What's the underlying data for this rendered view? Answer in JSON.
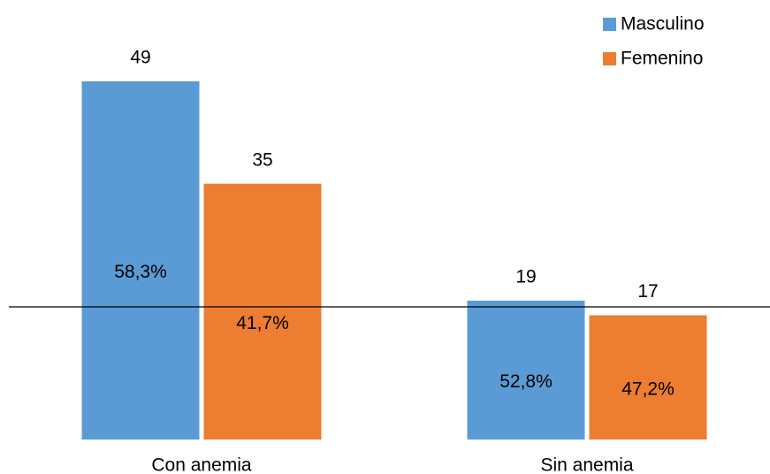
{
  "chart_data": {
    "type": "bar",
    "categories": [
      "Con anemia",
      "Sin anemia"
    ],
    "series": [
      {
        "name": "Masculino",
        "color": "#5b9bd5",
        "values": [
          49,
          19
        ],
        "inner_labels": [
          "58,3%",
          "52,8%"
        ]
      },
      {
        "name": "Femenino",
        "color": "#ed7d31",
        "values": [
          35,
          17
        ],
        "inner_labels": [
          "41,7%",
          "47,2%"
        ]
      }
    ],
    "legend": "top-right"
  }
}
